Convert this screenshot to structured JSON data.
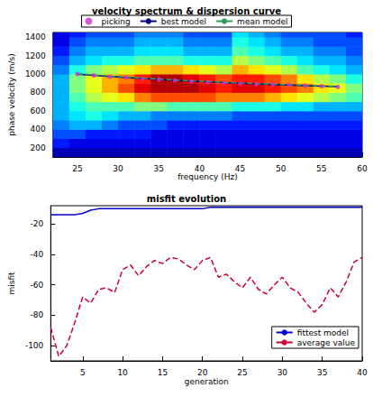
{
  "chart_data": [
    {
      "type": "heatmap",
      "title": "velocity spectrum & dispersion curve",
      "xlabel": "frequency (Hz)",
      "ylabel": "phase velocity (m/s)",
      "xlim": [
        22,
        60
      ],
      "ylim": [
        100,
        1450
      ],
      "xticks": [
        25,
        30,
        35,
        40,
        45,
        50,
        55,
        60
      ],
      "yticks": [
        200,
        400,
        600,
        800,
        1000,
        1200,
        1400
      ],
      "grid": false,
      "legend": "top",
      "cells": {
        "x": [
          23,
          25,
          27,
          29,
          31,
          33,
          35,
          37,
          39,
          41,
          43,
          45,
          47,
          49,
          51,
          53,
          55,
          57,
          59
        ],
        "y": [
          150,
          250,
          350,
          450,
          550,
          650,
          750,
          850,
          950,
          1050,
          1150,
          1250,
          1350,
          1450
        ],
        "zlim": [
          0,
          1
        ],
        "values": [
          [
            0.05,
            0.05,
            0.05,
            0.05,
            0.05,
            0.05,
            0.05,
            0.05,
            0.05,
            0.05,
            0.05,
            0.05,
            0.05,
            0.05,
            0.05,
            0.05,
            0.05,
            0.05,
            0.05
          ],
          [
            0.15,
            0.1,
            0.1,
            0.1,
            0.1,
            0.1,
            0.1,
            0.1,
            0.1,
            0.1,
            0.1,
            0.1,
            0.1,
            0.1,
            0.1,
            0.1,
            0.1,
            0.1,
            0.1
          ],
          [
            0.2,
            0.2,
            0.15,
            0.15,
            0.15,
            0.15,
            0.1,
            0.1,
            0.1,
            0.1,
            0.1,
            0.1,
            0.1,
            0.1,
            0.1,
            0.1,
            0.1,
            0.1,
            0.1
          ],
          [
            0.25,
            0.3,
            0.3,
            0.25,
            0.2,
            0.2,
            0.2,
            0.15,
            0.15,
            0.15,
            0.15,
            0.15,
            0.15,
            0.15,
            0.15,
            0.15,
            0.15,
            0.15,
            0.15
          ],
          [
            0.3,
            0.35,
            0.4,
            0.35,
            0.3,
            0.3,
            0.25,
            0.25,
            0.25,
            0.25,
            0.25,
            0.2,
            0.2,
            0.2,
            0.2,
            0.2,
            0.2,
            0.2,
            0.2
          ],
          [
            0.3,
            0.4,
            0.45,
            0.45,
            0.45,
            0.5,
            0.5,
            0.45,
            0.45,
            0.45,
            0.45,
            0.4,
            0.4,
            0.4,
            0.35,
            0.35,
            0.3,
            0.3,
            0.3
          ],
          [
            0.3,
            0.45,
            0.55,
            0.6,
            0.65,
            0.75,
            0.8,
            0.8,
            0.8,
            0.8,
            0.75,
            0.75,
            0.75,
            0.7,
            0.65,
            0.6,
            0.55,
            0.5,
            0.45
          ],
          [
            0.3,
            0.5,
            0.6,
            0.7,
            0.8,
            0.9,
            0.95,
            0.95,
            0.95,
            0.9,
            0.85,
            0.9,
            0.9,
            0.85,
            0.8,
            0.75,
            0.65,
            0.6,
            0.5
          ],
          [
            0.3,
            0.5,
            0.6,
            0.7,
            0.75,
            0.85,
            0.95,
            0.95,
            0.9,
            0.85,
            0.8,
            0.85,
            0.85,
            0.8,
            0.75,
            0.65,
            0.55,
            0.5,
            0.4
          ],
          [
            0.25,
            0.4,
            0.5,
            0.55,
            0.6,
            0.65,
            0.7,
            0.7,
            0.65,
            0.6,
            0.55,
            0.7,
            0.65,
            0.6,
            0.55,
            0.45,
            0.4,
            0.35,
            0.3
          ],
          [
            0.2,
            0.3,
            0.35,
            0.4,
            0.4,
            0.45,
            0.45,
            0.45,
            0.4,
            0.4,
            0.4,
            0.55,
            0.5,
            0.45,
            0.4,
            0.35,
            0.3,
            0.3,
            0.25
          ],
          [
            0.15,
            0.25,
            0.3,
            0.3,
            0.3,
            0.35,
            0.35,
            0.35,
            0.3,
            0.3,
            0.3,
            0.45,
            0.4,
            0.35,
            0.3,
            0.3,
            0.25,
            0.25,
            0.2
          ],
          [
            0.1,
            0.2,
            0.25,
            0.25,
            0.25,
            0.3,
            0.3,
            0.3,
            0.25,
            0.25,
            0.25,
            0.4,
            0.35,
            0.3,
            0.25,
            0.25,
            0.2,
            0.2,
            0.2
          ],
          [
            0.1,
            0.15,
            0.2,
            0.2,
            0.2,
            0.25,
            0.25,
            0.25,
            0.2,
            0.2,
            0.2,
            0.35,
            0.3,
            0.25,
            0.2,
            0.2,
            0.2,
            0.2,
            0.15
          ]
        ]
      },
      "series": [
        {
          "name": "picking",
          "type": "scatter",
          "marker": "circle",
          "color": "#cc33cc",
          "x": [
            25,
            27,
            29,
            31,
            33,
            35,
            37,
            39,
            41,
            43,
            45,
            47,
            49,
            51,
            53,
            55,
            57
          ],
          "values": [
            1000,
            985,
            970,
            960,
            950,
            940,
            930,
            920,
            910,
            905,
            895,
            890,
            885,
            880,
            873,
            867,
            860
          ]
        },
        {
          "name": "best model",
          "type": "line",
          "line_style": "solid",
          "color": "#000080",
          "x": [
            25,
            27,
            29,
            31,
            33,
            35,
            37,
            39,
            41,
            43,
            45,
            47,
            49,
            51,
            53,
            55,
            57
          ],
          "values": [
            998,
            986,
            973,
            962,
            951,
            941,
            931,
            922,
            914,
            906,
            899,
            892,
            886,
            880,
            874,
            868,
            862
          ]
        },
        {
          "name": "mean model",
          "type": "line",
          "line_style": "dashed",
          "color": "#2e9e5a",
          "x": [
            25,
            27,
            29,
            31,
            33,
            35,
            37,
            39,
            41,
            43,
            45,
            47,
            49,
            51,
            53,
            55,
            57
          ],
          "values": [
            1003,
            990,
            978,
            966,
            955,
            945,
            935,
            926,
            918,
            910,
            902,
            896,
            890,
            884,
            878,
            872,
            866
          ]
        }
      ]
    },
    {
      "type": "line",
      "title": "misfit evolution",
      "xlabel": "generation",
      "ylabel": "misfit",
      "xlim": [
        1,
        40
      ],
      "ylim": [
        -110,
        -8
      ],
      "xticks": [
        5,
        10,
        15,
        20,
        25,
        30,
        35,
        40
      ],
      "yticks": [
        -100,
        -80,
        -60,
        -40,
        -20
      ],
      "grid": false,
      "legend": "lower right",
      "x": [
        1,
        2,
        3,
        4,
        5,
        6,
        7,
        8,
        9,
        10,
        11,
        12,
        13,
        14,
        15,
        16,
        17,
        18,
        19,
        20,
        21,
        22,
        23,
        24,
        25,
        26,
        27,
        28,
        29,
        30,
        31,
        32,
        33,
        34,
        35,
        36,
        37,
        38,
        39,
        40
      ],
      "series": [
        {
          "name": "fittest model",
          "line_style": "solid",
          "color": "#0000cc",
          "values": [
            -14,
            -14,
            -14,
            -14,
            -13,
            -11,
            -10,
            -10,
            -10,
            -10,
            -10,
            -10,
            -10,
            -10,
            -10,
            -10,
            -10,
            -10,
            -10,
            -10,
            -9,
            -9,
            -9,
            -9,
            -9,
            -9,
            -9,
            -9,
            -9,
            -9,
            -9,
            -9,
            -9,
            -9,
            -9,
            -9,
            -9,
            -9,
            -9,
            -9
          ]
        },
        {
          "name": "average value",
          "line_style": "dashed",
          "color": "#cc0033",
          "values": [
            -88,
            -107,
            -100,
            -85,
            -68,
            -72,
            -63,
            -62,
            -65,
            -50,
            -47,
            -54,
            -48,
            -44,
            -46,
            -42,
            -43,
            -47,
            -50,
            -44,
            -42,
            -55,
            -53,
            -58,
            -62,
            -55,
            -63,
            -66,
            -60,
            -55,
            -62,
            -65,
            -72,
            -78,
            -73,
            -62,
            -68,
            -58,
            -45,
            -42
          ]
        }
      ]
    }
  ]
}
